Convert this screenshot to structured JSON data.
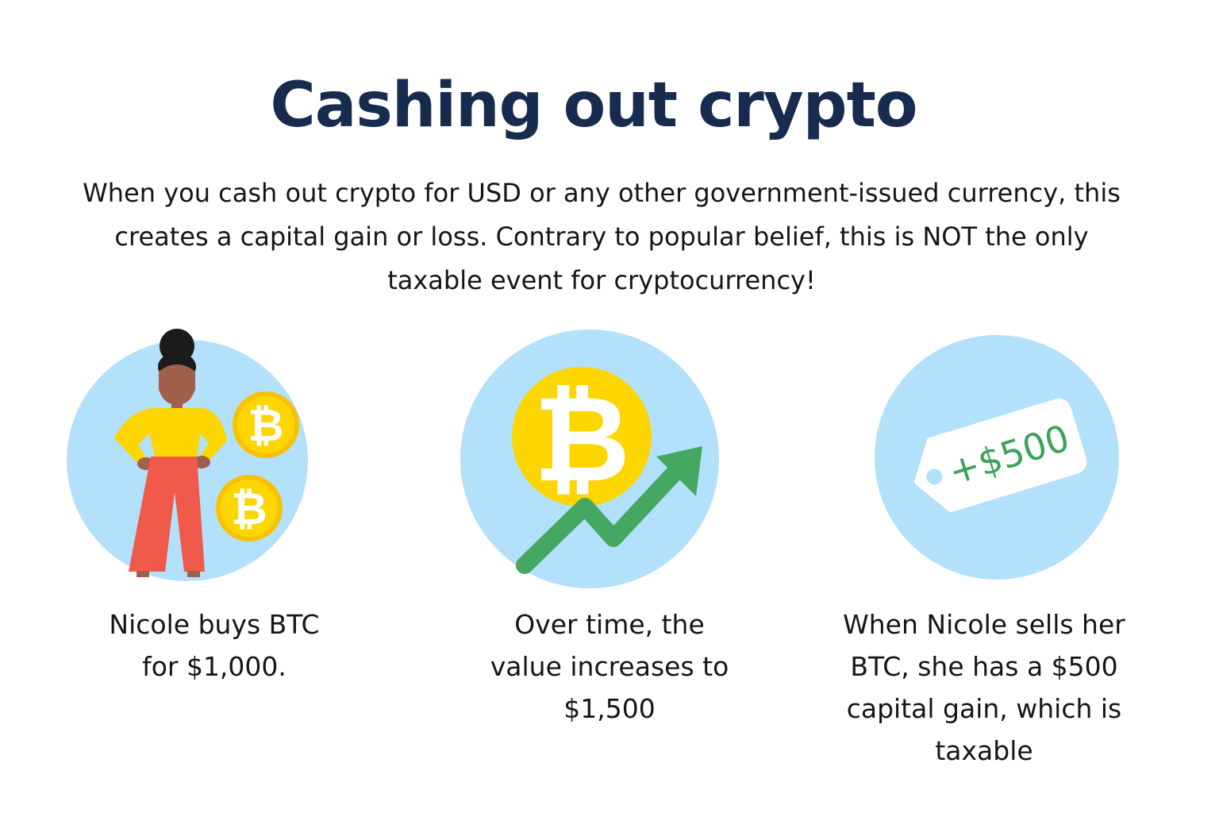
{
  "title": "Cashing out crypto",
  "intro": "When you cash out crypto for USD or any other government-issued currency, this creates a capital gain or loss. Contrary to popular belief, this is NOT the only taxable event for cryptocurrency!",
  "steps": [
    {
      "illustration": "person-with-bitcoin-coins",
      "caption": "Nicole buys BTC for $1,000."
    },
    {
      "illustration": "bitcoin-rising-arrow",
      "caption": "Over time, the value increases to $1,500"
    },
    {
      "illustration": "price-tag",
      "tag_text": "+$500",
      "caption": "When Nicole sells her BTC, she has a $500 capital gain, which is taxable"
    }
  ],
  "colors": {
    "title": "#172b4f",
    "circle": "#b3e0fb",
    "coin": "#fdd500",
    "arrow": "#45a862",
    "pants": "#f05a4a",
    "tag_text": "#3aa25a"
  }
}
